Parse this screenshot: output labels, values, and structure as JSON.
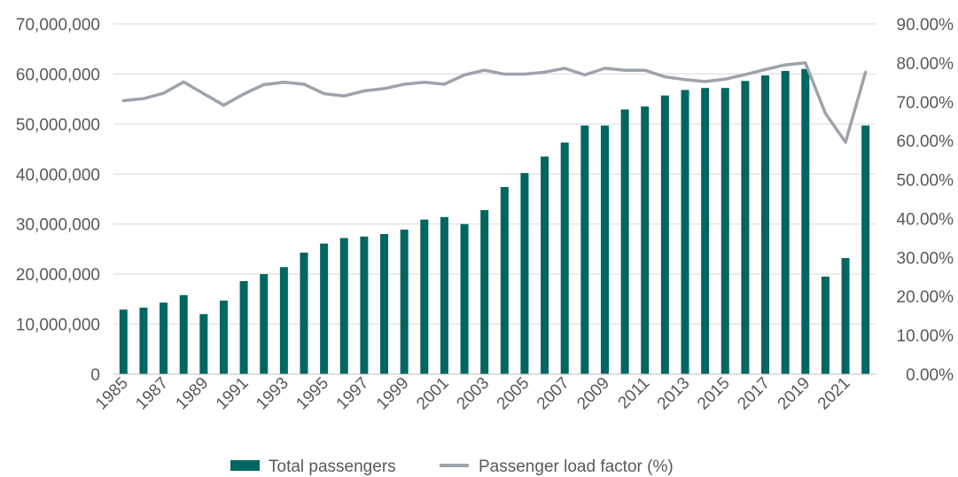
{
  "chart_data": {
    "type": "bar",
    "title": "",
    "xlabel": "",
    "ylabel": "",
    "x": [
      1985,
      1986,
      1987,
      1988,
      1989,
      1990,
      1991,
      1992,
      1993,
      1994,
      1995,
      1996,
      1997,
      1998,
      1999,
      2000,
      2001,
      2002,
      2003,
      2004,
      2005,
      2006,
      2007,
      2008,
      2009,
      2010,
      2011,
      2012,
      2013,
      2014,
      2015,
      2016,
      2017,
      2018,
      2019,
      2020,
      2021,
      2022
    ],
    "x_tick_labels": [
      "1985",
      "1987",
      "1989",
      "1991",
      "1993",
      "1995",
      "1997",
      "1999",
      "2001",
      "2003",
      "2005",
      "2007",
      "2009",
      "2011",
      "2013",
      "2015",
      "2017",
      "2019",
      "2021"
    ],
    "y_left_ticks": [
      "0",
      "10,000,000",
      "20,000,000",
      "30,000,000",
      "40,000,000",
      "50,000,000",
      "60,000,000",
      "70,000,000"
    ],
    "y_right_ticks": [
      "0.00%",
      "10.00%",
      "20.00%",
      "30.00%",
      "40.00%",
      "50.00%",
      "60.00%",
      "70.00%",
      "80.00%",
      "90.00%"
    ],
    "ylim_left": [
      0,
      70000000
    ],
    "ylim_right": [
      0,
      90
    ],
    "grid": "horizontal",
    "legend_position": "bottom",
    "series": [
      {
        "name": "Total passengers",
        "type": "bar",
        "axis": "left",
        "color": "#006661",
        "values": [
          12900000,
          13300000,
          14300000,
          15800000,
          12000000,
          14700000,
          18600000,
          20000000,
          21400000,
          24300000,
          26100000,
          27200000,
          27500000,
          28000000,
          28900000,
          30900000,
          31400000,
          30000000,
          32800000,
          37400000,
          40200000,
          43500000,
          46300000,
          49700000,
          49700000,
          52900000,
          53500000,
          55700000,
          56800000,
          57200000,
          57200000,
          58600000,
          59700000,
          60600000,
          61000000,
          19500000,
          23200000,
          49700000
        ]
      },
      {
        "name": "Passenger load factor (%)",
        "type": "line",
        "axis": "right",
        "color": "#9ea3ab",
        "values": [
          70.3,
          70.8,
          72.2,
          75.1,
          72.1,
          69.1,
          72.0,
          74.4,
          75.0,
          74.5,
          72.1,
          71.5,
          72.8,
          73.4,
          74.5,
          75.0,
          74.5,
          76.9,
          78.1,
          77.1,
          77.1,
          77.6,
          78.6,
          76.9,
          78.6,
          78.1,
          78.1,
          76.4,
          75.7,
          75.2,
          75.8,
          77.0,
          78.3,
          79.5,
          80.0,
          67.0,
          59.6,
          77.6
        ]
      }
    ]
  }
}
